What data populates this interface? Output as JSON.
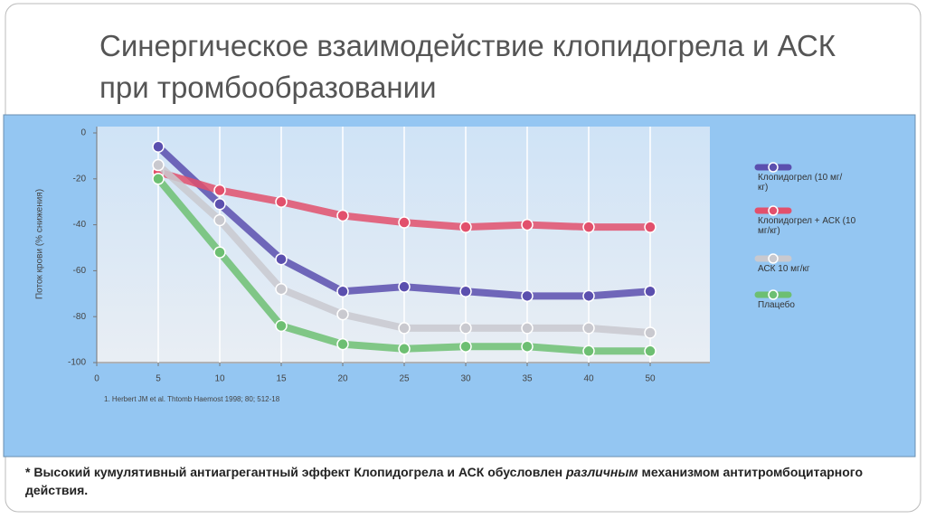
{
  "title": "Синергическое взаимодействие клопидогрела и АСК при тромбообразовании",
  "chart_data": {
    "type": "line",
    "y_label": "Поток крови (% снижения)",
    "source": "1. Herbert JM et al. Thtomb Haemost 1998; 80; 512-18",
    "categories": [
      "0",
      "5",
      "10",
      "15",
      "20",
      "25",
      "30",
      "35",
      "40",
      "50"
    ],
    "ylim": [
      -100,
      0
    ],
    "yticks": [
      0,
      -20,
      -40,
      -60,
      -80,
      -100
    ],
    "grid": true,
    "series": [
      {
        "name": "Клопидогрел (10 мг/кг)",
        "color": "#5b4fae",
        "values": [
          null,
          -6,
          -31,
          -55,
          -69,
          -67,
          -69,
          -71,
          -71,
          -69
        ]
      },
      {
        "name": "Клопидогрел + АСК (10 мг/кг)",
        "color": "#e2506c",
        "values": [
          null,
          -17,
          -25,
          -30,
          -36,
          -39,
          -41,
          -40,
          -41,
          -41
        ]
      },
      {
        "name": "АСК 10 мг/кг",
        "color": "#c9c9cf",
        "values": [
          null,
          -14,
          -38,
          -68,
          -79,
          -85,
          -85,
          -85,
          -85,
          -87
        ]
      },
      {
        "name": "Плацебо",
        "color": "#6dbf72",
        "values": [
          null,
          -20,
          -52,
          -84,
          -92,
          -94,
          -93,
          -93,
          -95,
          -95
        ]
      }
    ]
  },
  "footnote": [
    "* Высокий  кумулятивный  антиагрегантный  эффект Клопидогрела и АСК обусловлен ",
    "различным",
    "  механизмом антитромбоцитарного действия."
  ]
}
